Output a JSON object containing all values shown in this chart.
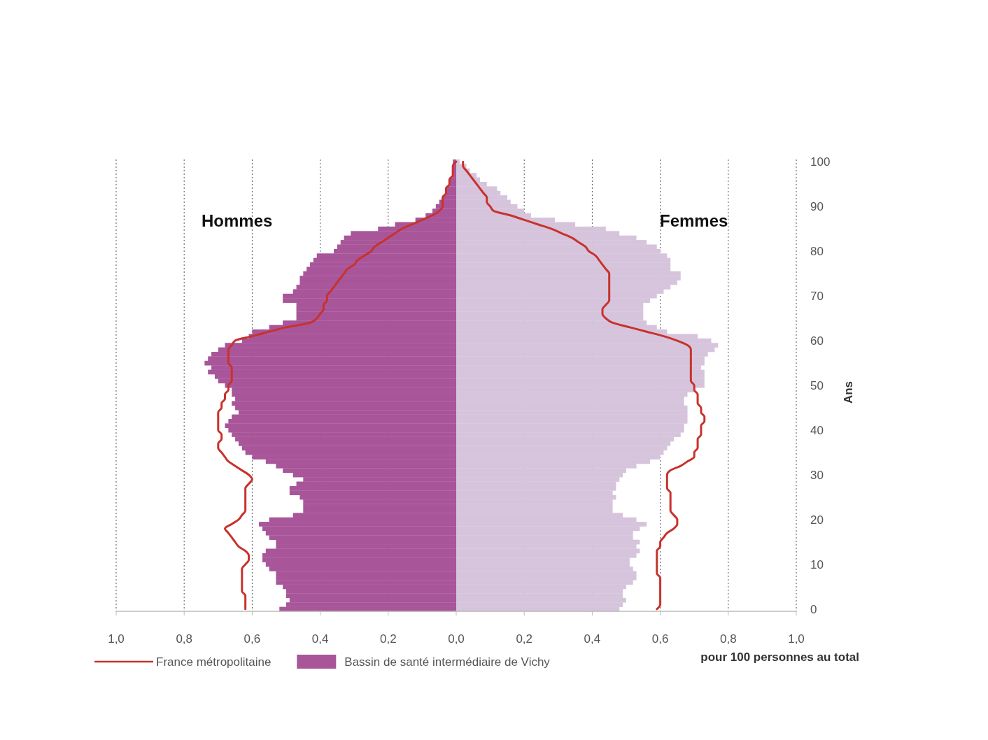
{
  "chart_data": {
    "type": "bar",
    "orientation": "horizontal",
    "xlabel": "pour 100 personnes au total",
    "ylabel": "Ans",
    "annotations": [
      "Hommes",
      "Femmes"
    ],
    "categories": [
      "100",
      null,
      null,
      null,
      null,
      null,
      null,
      null,
      null,
      null,
      "90",
      null,
      null,
      null,
      null,
      null,
      null,
      null,
      null,
      null,
      "80",
      null,
      null,
      null,
      null,
      null,
      null,
      null,
      null,
      null,
      "70",
      null,
      null,
      null,
      null,
      null,
      null,
      null,
      null,
      null,
      "60",
      null,
      null,
      null,
      null,
      null,
      null,
      null,
      null,
      null,
      "50",
      null,
      null,
      null,
      null,
      null,
      null,
      null,
      null,
      null,
      "40",
      null,
      null,
      null,
      null,
      null,
      null,
      null,
      null,
      null,
      "30",
      null,
      null,
      null,
      null,
      null,
      null,
      null,
      null,
      null,
      "20",
      null,
      null,
      null,
      null,
      null,
      null,
      null,
      null,
      null,
      "10",
      null,
      null,
      null,
      null,
      null,
      null,
      null,
      null,
      null,
      "0"
    ],
    "xlim": [
      -1,
      1
    ],
    "xticks": [
      {
        "value": -1,
        "label": "1,0"
      },
      {
        "value": -0.8,
        "label": "0,8"
      },
      {
        "value": -0.6,
        "label": "0,6"
      },
      {
        "value": -0.4,
        "label": "0,4"
      },
      {
        "value": -0.2,
        "label": "0,2"
      },
      {
        "value": 0,
        "label": "0,0"
      },
      {
        "value": 0.2,
        "label": "0,2"
      },
      {
        "value": 0.4,
        "label": "0,4"
      },
      {
        "value": 0.6,
        "label": "0,6"
      },
      {
        "value": 0.8,
        "label": "0,8"
      },
      {
        "value": 1,
        "label": "1,0"
      }
    ],
    "grid": "x",
    "legend": "bottom",
    "stacked": true,
    "series": [
      {
        "name": "Bassin de santé intermédiaire de Vichy",
        "color": "#a8559a",
        "values": [
          -0.01,
          -0.01,
          -0.01,
          -0.01,
          -0.02,
          -0.02,
          -0.03,
          -0.03,
          -0.04,
          -0.05,
          -0.06,
          -0.07,
          -0.09,
          -0.12,
          -0.18,
          -0.23,
          -0.31,
          -0.33,
          -0.34,
          -0.35,
          -0.36,
          -0.41,
          -0.42,
          -0.43,
          -0.44,
          -0.45,
          -0.46,
          -0.46,
          -0.47,
          -0.48,
          -0.51,
          -0.51,
          -0.47,
          -0.47,
          -0.47,
          -0.47,
          -0.51,
          -0.55,
          -0.6,
          -0.61,
          -0.63,
          -0.68,
          -0.7,
          -0.72,
          -0.73,
          -0.74,
          -0.72,
          -0.73,
          -0.71,
          -0.7,
          -0.68,
          -0.66,
          -0.66,
          -0.65,
          -0.66,
          -0.65,
          -0.64,
          -0.66,
          -0.67,
          -0.68,
          -0.67,
          -0.66,
          -0.65,
          -0.64,
          -0.63,
          -0.62,
          -0.6,
          -0.56,
          -0.53,
          -0.51,
          -0.48,
          -0.45,
          -0.47,
          -0.49,
          -0.49,
          -0.46,
          -0.45,
          -0.45,
          -0.45,
          -0.48,
          -0.55,
          -0.58,
          -0.57,
          -0.56,
          -0.55,
          -0.53,
          -0.53,
          -0.56,
          -0.57,
          -0.57,
          -0.56,
          -0.55,
          -0.53,
          -0.53,
          -0.53,
          -0.51,
          -0.5,
          -0.5,
          -0.49,
          -0.5,
          -0.52
        ]
      },
      {
        "color": "#d6c4dc",
        "values": [
          0.01,
          0.03,
          0.04,
          0.06,
          0.07,
          0.09,
          0.12,
          0.13,
          0.15,
          0.16,
          0.18,
          0.2,
          0.22,
          0.29,
          0.35,
          0.44,
          0.48,
          0.53,
          0.56,
          0.59,
          0.6,
          0.62,
          0.63,
          0.63,
          0.63,
          0.66,
          0.66,
          0.65,
          0.63,
          0.61,
          0.59,
          0.57,
          0.55,
          0.55,
          0.55,
          0.55,
          0.56,
          0.59,
          0.62,
          0.71,
          0.75,
          0.77,
          0.76,
          0.74,
          0.73,
          0.73,
          0.72,
          0.73,
          0.73,
          0.73,
          0.73,
          0.7,
          0.68,
          0.67,
          0.67,
          0.68,
          0.68,
          0.68,
          0.68,
          0.67,
          0.67,
          0.66,
          0.64,
          0.63,
          0.62,
          0.61,
          0.6,
          0.57,
          0.53,
          0.5,
          0.49,
          0.48,
          0.47,
          0.47,
          0.46,
          0.47,
          0.46,
          0.46,
          0.46,
          0.49,
          0.53,
          0.56,
          0.54,
          0.52,
          0.52,
          0.54,
          0.53,
          0.54,
          0.53,
          0.51,
          0.51,
          0.52,
          0.53,
          0.53,
          0.52,
          0.5,
          0.49,
          0.49,
          0.5,
          0.49,
          0.48
        ]
      },
      {
        "type": "line",
        "name": "France métropolitaine",
        "color": "#c8322c",
        "values": [
          0,
          -0.01,
          -0.01,
          -0.01,
          -0.02,
          -0.02,
          -0.03,
          -0.03,
          -0.04,
          -0.04,
          -0.04,
          -0.05,
          -0.07,
          -0.1,
          -0.13,
          -0.16,
          -0.18,
          -0.2,
          -0.22,
          -0.24,
          -0.25,
          -0.27,
          -0.29,
          -0.3,
          -0.32,
          -0.33,
          -0.34,
          -0.35,
          -0.36,
          -0.37,
          -0.38,
          -0.38,
          -0.39,
          -0.39,
          -0.4,
          -0.41,
          -0.43,
          -0.5,
          -0.55,
          -0.6,
          -0.65,
          -0.66,
          -0.67,
          -0.67,
          -0.67,
          -0.67,
          -0.66,
          -0.66,
          -0.66,
          -0.66,
          -0.67,
          -0.67,
          -0.68,
          -0.68,
          -0.69,
          -0.69,
          -0.7,
          -0.7,
          -0.7,
          -0.7,
          -0.7,
          -0.69,
          -0.69,
          -0.7,
          -0.7,
          -0.69,
          -0.68,
          -0.67,
          -0.65,
          -0.63,
          -0.61,
          -0.6,
          -0.61,
          -0.62,
          -0.62,
          -0.62,
          -0.62,
          -0.62,
          -0.62,
          -0.63,
          -0.64,
          -0.66,
          -0.68,
          -0.67,
          -0.66,
          -0.65,
          -0.64,
          -0.62,
          -0.61,
          -0.61,
          -0.62,
          -0.63,
          -0.63,
          -0.63,
          -0.63,
          -0.63,
          -0.63,
          -0.62,
          -0.62,
          -0.62,
          -0.62
        ]
      },
      {
        "type": "line",
        "color": "#c8322c",
        "values": [
          0.02,
          0.02,
          0.03,
          0.04,
          0.05,
          0.06,
          0.07,
          0.08,
          0.09,
          0.09,
          0.1,
          0.11,
          0.16,
          0.2,
          0.24,
          0.28,
          0.31,
          0.34,
          0.36,
          0.38,
          0.39,
          0.41,
          0.42,
          0.43,
          0.44,
          0.45,
          0.45,
          0.45,
          0.45,
          0.45,
          0.45,
          0.45,
          0.44,
          0.43,
          0.43,
          0.44,
          0.46,
          0.51,
          0.56,
          0.61,
          0.65,
          0.68,
          0.69,
          0.69,
          0.69,
          0.69,
          0.69,
          0.69,
          0.69,
          0.69,
          0.7,
          0.7,
          0.71,
          0.71,
          0.71,
          0.72,
          0.72,
          0.73,
          0.73,
          0.72,
          0.72,
          0.72,
          0.71,
          0.71,
          0.71,
          0.7,
          0.7,
          0.68,
          0.66,
          0.63,
          0.62,
          0.62,
          0.62,
          0.62,
          0.63,
          0.63,
          0.63,
          0.63,
          0.63,
          0.64,
          0.65,
          0.65,
          0.64,
          0.62,
          0.61,
          0.6,
          0.6,
          0.59,
          0.59,
          0.59,
          0.59,
          0.59,
          0.59,
          0.6,
          0.6,
          0.6,
          0.6,
          0.6,
          0.6,
          0.6,
          0.59
        ]
      }
    ]
  }
}
